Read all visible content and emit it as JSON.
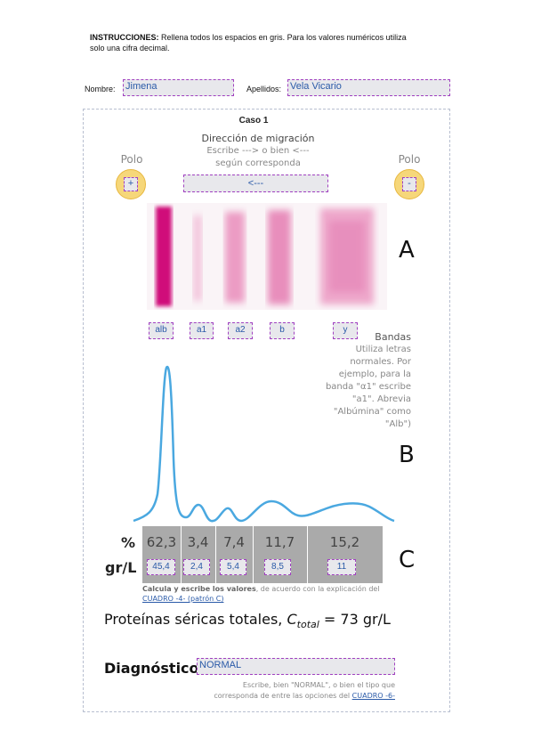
{
  "instructions": {
    "bold": "INSTRUCCIONES:",
    "text_line1": "Rellena todos los espacios en gris. Para los valores numéricos utiliza",
    "text_line2": "solo una cifra decimal."
  },
  "student": {
    "nombre_label": "Nombre:",
    "nombre_value": "Jimena",
    "apellidos_label": "Apellidos:",
    "apellidos_value": "Vela Vicario"
  },
  "case": {
    "title": "Caso 1",
    "migration_title": "Dirección de migración",
    "migration_hint_line1": "Escribe ---> o bien <---",
    "migration_hint_line2": "según corresponda",
    "migration_value": "<---",
    "polo_left_label": "Polo",
    "polo_left_value": "+",
    "polo_right_label": "Polo",
    "polo_right_value": "-",
    "panel_a": "A",
    "panel_b": "B",
    "panel_c": "C",
    "bands": [
      "alb",
      "a1",
      "a2",
      "b",
      "y"
    ],
    "bands_help": {
      "title": "Bandas",
      "line1": "Utiliza letras",
      "line2": "normales. Por",
      "line3": "ejemplo, para la",
      "line4": "banda \"α1\" escribe",
      "line5": "\"a1\". Abrevia",
      "line6": "\"Albúmina\" como",
      "line7": "\"Alb\")"
    },
    "table": {
      "pct_label": "%",
      "grl_label": "gr/L",
      "percent": [
        "62,3",
        "3,4",
        "7,4",
        "11,7",
        "15,2"
      ],
      "grl": [
        "45,4",
        "2,4",
        "5,4",
        "8,5",
        "11"
      ]
    },
    "calc_note_bold": "Calcula y escribe los valores",
    "calc_note_rest": ", de acuerdo con la explicación del",
    "calc_note_link": "CUADRO -4- (patrón C)",
    "proteins_text": "Proteínas séricas totales, ",
    "proteins_c": "C",
    "proteins_sub": "total",
    "proteins_eq": " = 73 gr/L",
    "diagnostico_label": "Diagnóstico:",
    "diagnostico_value": "NORMAL",
    "diag_hint_line1": "Escribe, bien \"NORMAL\", o bien el tipo que",
    "diag_hint_line2": "corresponda de entre las opciones del ",
    "diag_hint_link": "CUADRO -6-"
  },
  "colors": {
    "field_border": "#a040c0",
    "field_bg": "#e8e8ec",
    "band_color": "#d0107a",
    "curve": "#4aa8e0",
    "table_bg": "#aaaaaa"
  }
}
